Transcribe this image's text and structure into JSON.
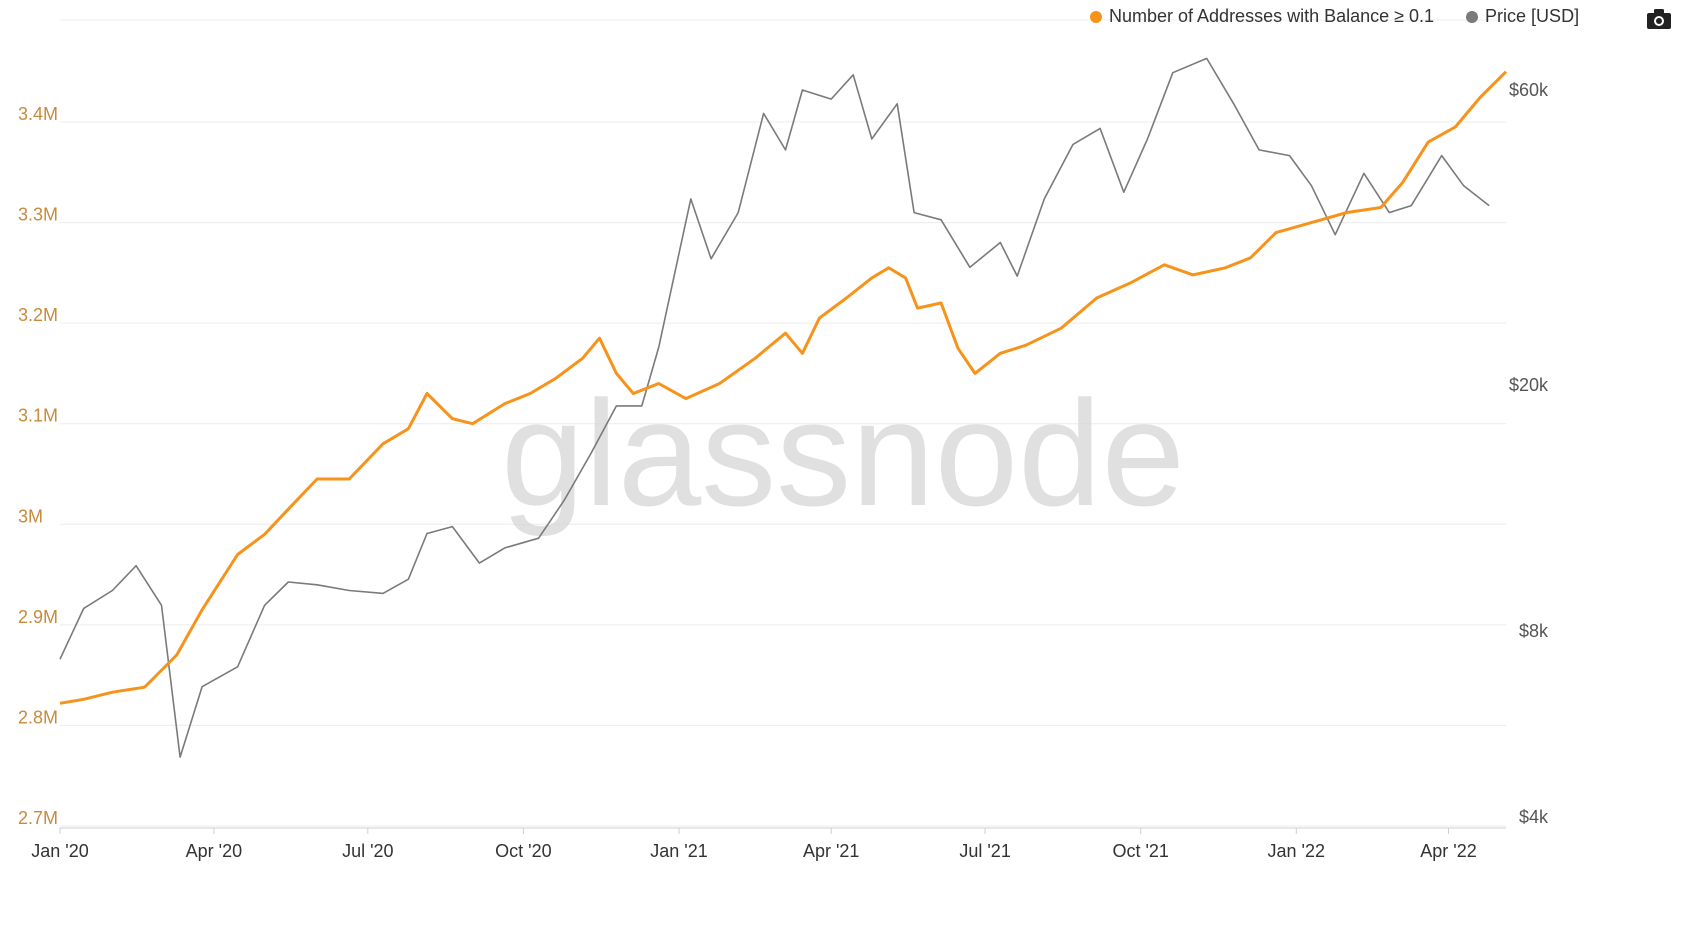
{
  "legend": {
    "series1_label": "Number of Addresses with Balance ≥ 0.1",
    "series2_label": "Price [USD]"
  },
  "toolbar": {
    "camera_icon": "camera-icon"
  },
  "watermark": "glassnode",
  "colors": {
    "addresses": "#f7931a",
    "price": "#7a7a7a",
    "left_axis": "#c88a3c",
    "grid": "#ececec"
  },
  "chart_data": {
    "type": "line",
    "x_ticks": [
      "Jan '20",
      "Apr '20",
      "Jul '20",
      "Oct '20",
      "Jan '21",
      "Apr '21",
      "Jul '21",
      "Oct '21",
      "Jan '22",
      "Apr '22"
    ],
    "y_left_ticks": [
      "2.7M",
      "2.8M",
      "2.9M",
      "3M",
      "3.1M",
      "3.2M",
      "3.3M",
      "3.4M"
    ],
    "y_left_range": [
      2700000,
      3400000
    ],
    "y_right_ticks": [
      "$4k",
      "$8k",
      "$20k",
      "$60k"
    ],
    "y_right_scale": "log",
    "grid": true,
    "legend_position": "top-right",
    "series": [
      {
        "name": "Number of Addresses with Balance ≥ 0.1",
        "axis": "left",
        "points": [
          [
            "2020-01-01",
            2822000
          ],
          [
            "2020-01-15",
            2826000
          ],
          [
            "2020-02-01",
            2833000
          ],
          [
            "2020-02-20",
            2838000
          ],
          [
            "2020-03-10",
            2870000
          ],
          [
            "2020-03-25",
            2915000
          ],
          [
            "2020-04-15",
            2970000
          ],
          [
            "2020-05-01",
            2990000
          ],
          [
            "2020-05-15",
            3015000
          ],
          [
            "2020-06-01",
            3045000
          ],
          [
            "2020-06-20",
            3045000
          ],
          [
            "2020-07-10",
            3080000
          ],
          [
            "2020-07-25",
            3095000
          ],
          [
            "2020-08-05",
            3130000
          ],
          [
            "2020-08-20",
            3105000
          ],
          [
            "2020-09-01",
            3100000
          ],
          [
            "2020-09-20",
            3120000
          ],
          [
            "2020-10-05",
            3130000
          ],
          [
            "2020-10-20",
            3145000
          ],
          [
            "2020-11-05",
            3165000
          ],
          [
            "2020-11-15",
            3185000
          ],
          [
            "2020-11-25",
            3150000
          ],
          [
            "2020-12-05",
            3130000
          ],
          [
            "2020-12-20",
            3140000
          ],
          [
            "2021-01-05",
            3125000
          ],
          [
            "2021-01-25",
            3140000
          ],
          [
            "2021-02-15",
            3165000
          ],
          [
            "2021-03-05",
            3190000
          ],
          [
            "2021-03-15",
            3170000
          ],
          [
            "2021-03-25",
            3205000
          ],
          [
            "2021-04-10",
            3225000
          ],
          [
            "2021-04-25",
            3245000
          ],
          [
            "2021-05-05",
            3255000
          ],
          [
            "2021-05-15",
            3245000
          ],
          [
            "2021-05-22",
            3215000
          ],
          [
            "2021-06-05",
            3220000
          ],
          [
            "2021-06-15",
            3175000
          ],
          [
            "2021-06-25",
            3150000
          ],
          [
            "2021-07-10",
            3170000
          ],
          [
            "2021-07-25",
            3178000
          ],
          [
            "2021-08-15",
            3195000
          ],
          [
            "2021-09-05",
            3225000
          ],
          [
            "2021-09-25",
            3240000
          ],
          [
            "2021-10-15",
            3258000
          ],
          [
            "2021-11-01",
            3248000
          ],
          [
            "2021-11-20",
            3255000
          ],
          [
            "2021-12-05",
            3265000
          ],
          [
            "2021-12-20",
            3290000
          ],
          [
            "2022-01-10",
            3300000
          ],
          [
            "2022-01-31",
            3310000
          ],
          [
            "2022-02-20",
            3315000
          ],
          [
            "2022-03-05",
            3340000
          ],
          [
            "2022-03-20",
            3380000
          ],
          [
            "2022-04-05",
            3395000
          ],
          [
            "2022-04-20",
            3425000
          ],
          [
            "2022-05-05",
            3450000
          ]
        ]
      },
      {
        "name": "Price [USD]",
        "axis": "right",
        "points": [
          [
            "2020-01-01",
            7200
          ],
          [
            "2020-01-15",
            8700
          ],
          [
            "2020-02-01",
            9300
          ],
          [
            "2020-02-15",
            10200
          ],
          [
            "2020-03-01",
            8800
          ],
          [
            "2020-03-12",
            5000
          ],
          [
            "2020-03-25",
            6500
          ],
          [
            "2020-04-15",
            7000
          ],
          [
            "2020-05-01",
            8800
          ],
          [
            "2020-05-15",
            9600
          ],
          [
            "2020-06-01",
            9500
          ],
          [
            "2020-06-20",
            9300
          ],
          [
            "2020-07-10",
            9200
          ],
          [
            "2020-07-25",
            9700
          ],
          [
            "2020-08-05",
            11500
          ],
          [
            "2020-08-20",
            11800
          ],
          [
            "2020-09-05",
            10300
          ],
          [
            "2020-09-20",
            10900
          ],
          [
            "2020-10-10",
            11300
          ],
          [
            "2020-10-25",
            13000
          ],
          [
            "2020-11-10",
            15500
          ],
          [
            "2020-11-25",
            18500
          ],
          [
            "2020-12-10",
            18500
          ],
          [
            "2020-12-20",
            23000
          ],
          [
            "2021-01-08",
            40000
          ],
          [
            "2021-01-20",
            32000
          ],
          [
            "2021-02-05",
            38000
          ],
          [
            "2021-02-20",
            55000
          ],
          [
            "2021-03-05",
            48000
          ],
          [
            "2021-03-15",
            60000
          ],
          [
            "2021-04-01",
            58000
          ],
          [
            "2021-04-14",
            63500
          ],
          [
            "2021-04-25",
            50000
          ],
          [
            "2021-05-10",
            57000
          ],
          [
            "2021-05-20",
            38000
          ],
          [
            "2021-06-05",
            37000
          ],
          [
            "2021-06-22",
            31000
          ],
          [
            "2021-07-10",
            34000
          ],
          [
            "2021-07-20",
            30000
          ],
          [
            "2021-08-05",
            40000
          ],
          [
            "2021-08-22",
            49000
          ],
          [
            "2021-09-07",
            52000
          ],
          [
            "2021-09-21",
            41000
          ],
          [
            "2021-10-05",
            50000
          ],
          [
            "2021-10-20",
            64000
          ],
          [
            "2021-11-09",
            67500
          ],
          [
            "2021-11-25",
            57000
          ],
          [
            "2021-12-10",
            48000
          ],
          [
            "2021-12-28",
            47000
          ],
          [
            "2022-01-10",
            42000
          ],
          [
            "2022-01-24",
            35000
          ],
          [
            "2022-02-10",
            44000
          ],
          [
            "2022-02-25",
            38000
          ],
          [
            "2022-03-10",
            39000
          ],
          [
            "2022-03-28",
            47000
          ],
          [
            "2022-04-10",
            42000
          ],
          [
            "2022-04-25",
            39000
          ]
        ]
      }
    ]
  }
}
